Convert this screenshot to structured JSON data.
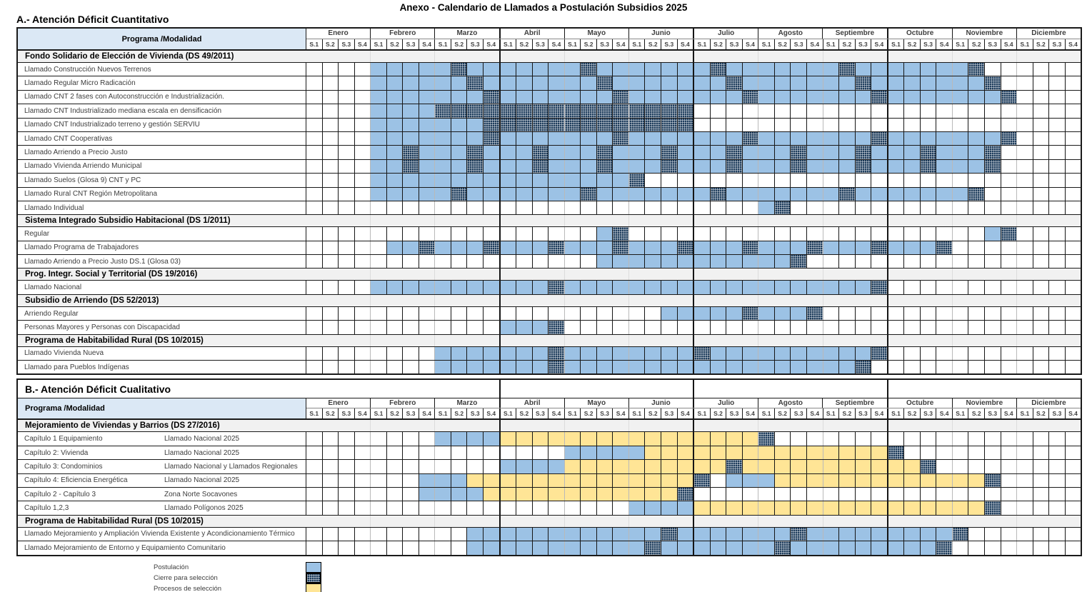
{
  "colors": {
    "postulacion": "#9CC2E5",
    "cierre": "#1e3d5c",
    "procesos": "#FFE596",
    "header_bg": "#DBE8F5",
    "section_bg": "#f1f1f1",
    "grid_line": "#151515",
    "month_line": "#b9b9b9"
  },
  "chart_data": {
    "type": "gantt",
    "title": "Anexo - Calendario de Llamados a Postulación Subsidios 2025",
    "months": [
      "Enero",
      "Febrero",
      "Marzo",
      "Abril",
      "Mayo",
      "Junio",
      "Julio",
      "Agosto",
      "Septiembre",
      "Octubre",
      "Noviembre",
      "Diciembre"
    ],
    "weeks": [
      "S.1",
      "S.2",
      "S.3",
      "S.4"
    ],
    "cell_codes": {
      ".": "vacío",
      "B": "Postulación",
      "H": "Cierre para selección",
      "Y": "Procesos de selección"
    },
    "legend": [
      {
        "label": "Postulación",
        "code": "B"
      },
      {
        "label": "Cierre para selección",
        "code": "H"
      },
      {
        "label": "Procesos de selección",
        "code": "Y"
      }
    ],
    "sections": [
      {
        "id": "A",
        "heading": "A.- Atención Déficit Cuantitativo",
        "heading_position": "above",
        "col_header": "Programa /Modalidad",
        "rows": [
          {
            "type": "section",
            "label": "Fondo Solidario de Elección de Vivienda (DS 49/2011)"
          },
          {
            "type": "item",
            "label": "Llamado Construcción Nuevos Terrenos",
            "cells": [
              "....",
              "BBBB",
              "BHBB",
              "BBBB",
              "BHBB",
              "BBBB",
              "BHBB",
              "BBBB",
              "BHBB",
              "BBBB",
              "BH..",
              "...."
            ]
          },
          {
            "type": "item",
            "label": "Llamado Regular Micro Radicación",
            "cells": [
              "....",
              "BBBB",
              "BBHB",
              "BBBB",
              "BBHB",
              "BBBB",
              "BBHB",
              "BBBB",
              "BBHB",
              "BBBB",
              "BBH.",
              "...."
            ]
          },
          {
            "type": "item",
            "label": "Llamado CNT 2 fases con Autoconstrucción e Industrialización.",
            "cells": [
              "....",
              "BBBB",
              "BBBH",
              "BBBB",
              "BBBH",
              "BBBB",
              "BBBH",
              "BBBB",
              "BBBH",
              "BBBB",
              "BBBH",
              "...."
            ]
          },
          {
            "type": "item",
            "label": "Llamado CNT Industrializado mediana escala en densificación",
            "cells": [
              "....",
              "BBBB",
              "HHHH",
              "HHHH",
              "HHHH",
              "HHHH",
              "....",
              "....",
              "....",
              "....",
              "....",
              "...."
            ]
          },
          {
            "type": "item",
            "label": "Llamado CNT Industrializado terreno y gestión SERVIU",
            "cells": [
              "....",
              "BBBB",
              "BBBH",
              "HHHH",
              "HHHH",
              "HHHH",
              "....",
              "....",
              "....",
              "....",
              "....",
              "...."
            ]
          },
          {
            "type": "item",
            "label": "Llamado CNT Cooperativas",
            "cells": [
              "....",
              "BBBB",
              "BBBH",
              "BBBB",
              "BBBH",
              "BBBB",
              "BBBH",
              "BBBB",
              "BBBH",
              "BBBB",
              "BBBH",
              "...."
            ]
          },
          {
            "type": "item",
            "label": "Llamado Arriendo a Precio Justo",
            "cells": [
              "....",
              "BBHB",
              "BBHB",
              "BBHB",
              "BBHB",
              "BBHB",
              "BBHB",
              "BBHB",
              "BBHB",
              "BBHB",
              "BBH.",
              "...."
            ]
          },
          {
            "type": "item",
            "label": "Llamado Vivienda Arriendo Municipal",
            "cells": [
              "....",
              "BBHB",
              "BBHB",
              "BBHB",
              "BBHB",
              "BBHB",
              "BBHB",
              "BBHB",
              "BBHB",
              "BBHB",
              "BBH.",
              "...."
            ]
          },
          {
            "type": "item",
            "label": "Llamado Suelos  (Glosa 9) CNT y PC",
            "cells": [
              "....",
              "BBBB",
              "BBBB",
              "BBBB",
              "BBBB",
              "H...",
              "....",
              "....",
              "....",
              "....",
              "....",
              "...."
            ]
          },
          {
            "type": "item",
            "label": "Llamado  Rural CNT Región Metropolitana",
            "cells": [
              "....",
              "BBBB",
              "BHBB",
              "BBBB",
              "BHBB",
              "BBBB",
              "BHBB",
              "BBBB",
              "BHBB",
              "BBBB",
              "BH..",
              "...."
            ]
          },
          {
            "type": "item",
            "label": "Llamado Individual",
            "cells": [
              "....",
              "....",
              "....",
              "....",
              "....",
              "....",
              "....",
              "BH..",
              "....",
              "....",
              "....",
              "...."
            ]
          },
          {
            "type": "section",
            "label": "Sistema Integrado Subsidio Habitacional (DS 1/2011)"
          },
          {
            "type": "item",
            "label": "Regular",
            "cells": [
              "....",
              "....",
              "....",
              "....",
              "..BH",
              "....",
              "....",
              "....",
              "....",
              "....",
              "..BH",
              "...."
            ]
          },
          {
            "type": "item",
            "label": "Llamado Programa de Trabajadores",
            "cells": [
              "....",
              ".BBH",
              "BBBH",
              "BBBH",
              "BBBH",
              "BBBH",
              "BBBH",
              "BBBH",
              "BBBH",
              "BBBH",
              "....",
              "...."
            ]
          },
          {
            "type": "item",
            "label": "Llamado Arriendo a Precio Justo DS.1 (Glosa 03)",
            "cells": [
              "....",
              "....",
              "....",
              "....",
              "..BB",
              "BBBB",
              "BBBB",
              "BBH.",
              "....",
              "....",
              "....",
              "...."
            ]
          },
          {
            "type": "section",
            "label": "Prog. Integr. Social y Territorial  (DS 19/2016)"
          },
          {
            "type": "item",
            "label": "Llamado Nacional",
            "cells": [
              "....",
              "BBBB",
              "BBBB",
              "BBBH",
              "BBBB",
              "BBBB",
              "BBBB",
              "BBBB",
              "BBBH",
              "....",
              "....",
              "...."
            ]
          },
          {
            "type": "section",
            "label": "Subsidio de Arriendo (DS 52/2013)"
          },
          {
            "type": "item",
            "label": "Arriendo Regular",
            "cells": [
              "....",
              "....",
              "....",
              "....",
              "....",
              "..BB",
              "BBBH",
              "BBBH",
              "....",
              "....",
              "....",
              "...."
            ]
          },
          {
            "type": "item",
            "label": "Personas Mayores y Personas con Discapacidad",
            "cells": [
              "....",
              "....",
              "....",
              "BBBH",
              "....",
              "....",
              "....",
              "....",
              "....",
              "....",
              "....",
              "...."
            ]
          },
          {
            "type": "section",
            "label": "Programa de Habitabilidad Rural (DS 10/2015)"
          },
          {
            "type": "item",
            "label": "Llamado Vivienda Nueva",
            "cells": [
              "....",
              "....",
              "BBBB",
              "BBBH",
              "BBBB",
              "BBBB",
              "HBBB",
              "BBBB",
              "BBBH",
              "....",
              "....",
              "...."
            ]
          },
          {
            "type": "item",
            "label": "Llamado para Pueblos Indígenas",
            "cells": [
              "....",
              "....",
              "BBBB",
              "BBBH",
              "BBBB",
              "BBBB",
              "BBBB",
              "BBBB",
              "BBH.",
              "....",
              "....",
              "...."
            ]
          }
        ]
      },
      {
        "id": "B",
        "heading": "B.- Atención Déficit Cualitativo",
        "heading_position": "inside",
        "col_header": "Programa /Modalidad",
        "rows": [
          {
            "type": "section",
            "label": "Mejoramiento de Viviendas y Barrios (DS 27/2016)"
          },
          {
            "type": "item",
            "label": "Capítulo 1 Equipamiento",
            "label2": "Llamado Nacional 2025",
            "cells": [
              "....",
              "....",
              "BBBB",
              "YYYY",
              "YYYY",
              "YYYY",
              "YYYY",
              "H...",
              "....",
              "....",
              "....",
              "...."
            ]
          },
          {
            "type": "item",
            "label": "Capítulo 2: Vivienda",
            "label2": "Llamado Nacional 2025",
            "cells": [
              "....",
              "....",
              "....",
              "....",
              "BBBB",
              "BYYY",
              "YYYY",
              "YYYY",
              "YYYY",
              "H...",
              "....",
              "...."
            ]
          },
          {
            "type": "item",
            "label": "Capítulo 3: Condominios",
            "label2": "Llamado Nacional y Llamados Regionales",
            "cells": [
              "....",
              "....",
              "....",
              "BBBB",
              "YYYY",
              "YYYY",
              "YYHY",
              "YYYY",
              "YYYY",
              "YYH.",
              "....",
              "...."
            ]
          },
          {
            "type": "item",
            "label": "Capítulo 4: Eficiencia Energética",
            "label2": "Llamado Nacional 2025",
            "cells": [
              "....",
              "...B",
              "BBYY",
              "YYYY",
              "YYYY",
              "YYYY",
              "H.BB",
              "BYYY",
              "YYYY",
              "YYYY",
              "YYH.",
              "...."
            ]
          },
          {
            "type": "item",
            "label": "Capítulo 2 - Capítulo 3",
            "label2": "Zona Norte Socavones",
            "cells": [
              "....",
              "...B",
              "BBBY",
              "YYYY",
              "YYYY",
              "YYYH",
              "....",
              "....",
              "....",
              "....",
              "....",
              "...."
            ]
          },
          {
            "type": "item",
            "label": "Capítulo 1,2,3",
            "label2": "Llamado Polígonos 2025",
            "cells": [
              "....",
              "....",
              "....",
              "....",
              "....",
              "BBBB",
              "YYYY",
              "YYYY",
              "YYYY",
              "YYYY",
              "YYH.",
              "...."
            ]
          },
          {
            "type": "section",
            "label": "Programa de Habitabilidad Rural (DS 10/2015)"
          },
          {
            "type": "item",
            "label": "Llamado Mejoramiento y Ampliación Vivienda Existente y Acondicionamiento Térmico",
            "cells": [
              "....",
              "....",
              "..BB",
              "BBBB",
              "BBBB",
              "BBHB",
              "BBBB",
              "BBHB",
              "BBBB",
              "BBBB",
              "H...",
              "...."
            ]
          },
          {
            "type": "item",
            "label": "Llamado Mejoramiento de Entorno y Equipamiento Comunitario",
            "cells": [
              "....",
              "....",
              "..BB",
              "BBBB",
              "BBBB",
              "BHBB",
              "BBBB",
              "BHBB",
              "BBBB",
              "BBBH",
              "....",
              "...."
            ]
          }
        ]
      }
    ]
  }
}
